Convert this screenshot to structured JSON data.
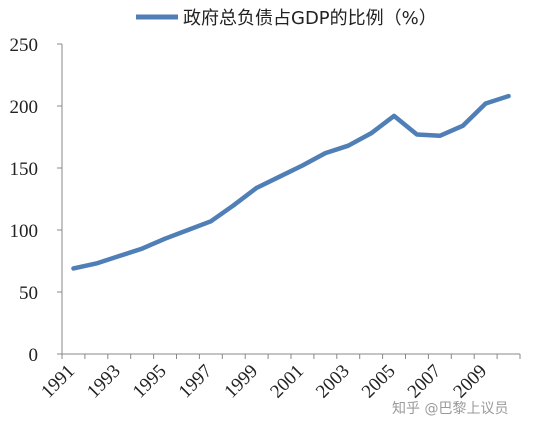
{
  "chart_data": {
    "type": "line",
    "x": [
      1991,
      1992,
      1993,
      1994,
      1995,
      1996,
      1997,
      1998,
      1999,
      2000,
      2001,
      2002,
      2003,
      2004,
      2005,
      2006,
      2007,
      2008,
      2009,
      2010
    ],
    "series": [
      {
        "name": "政府总负债占GDP的比例（%）",
        "color": "#4f7fb6",
        "values": [
          69,
          73,
          79,
          85,
          93,
          100,
          107,
          120,
          134,
          143,
          152,
          162,
          168,
          178,
          192,
          177,
          176,
          184,
          202,
          208
        ]
      }
    ],
    "ylim": [
      0,
      250
    ],
    "yticks": [
      0,
      50,
      100,
      150,
      200,
      250
    ],
    "xtick_labels": [
      "1991",
      "1993",
      "1995",
      "1997",
      "1999",
      "2001",
      "2003",
      "2005",
      "2007",
      "2009"
    ],
    "title": "",
    "xlabel": "",
    "ylabel": "",
    "grid": false,
    "legend_position": "top"
  },
  "watermark": "知乎 @巴黎上议员"
}
